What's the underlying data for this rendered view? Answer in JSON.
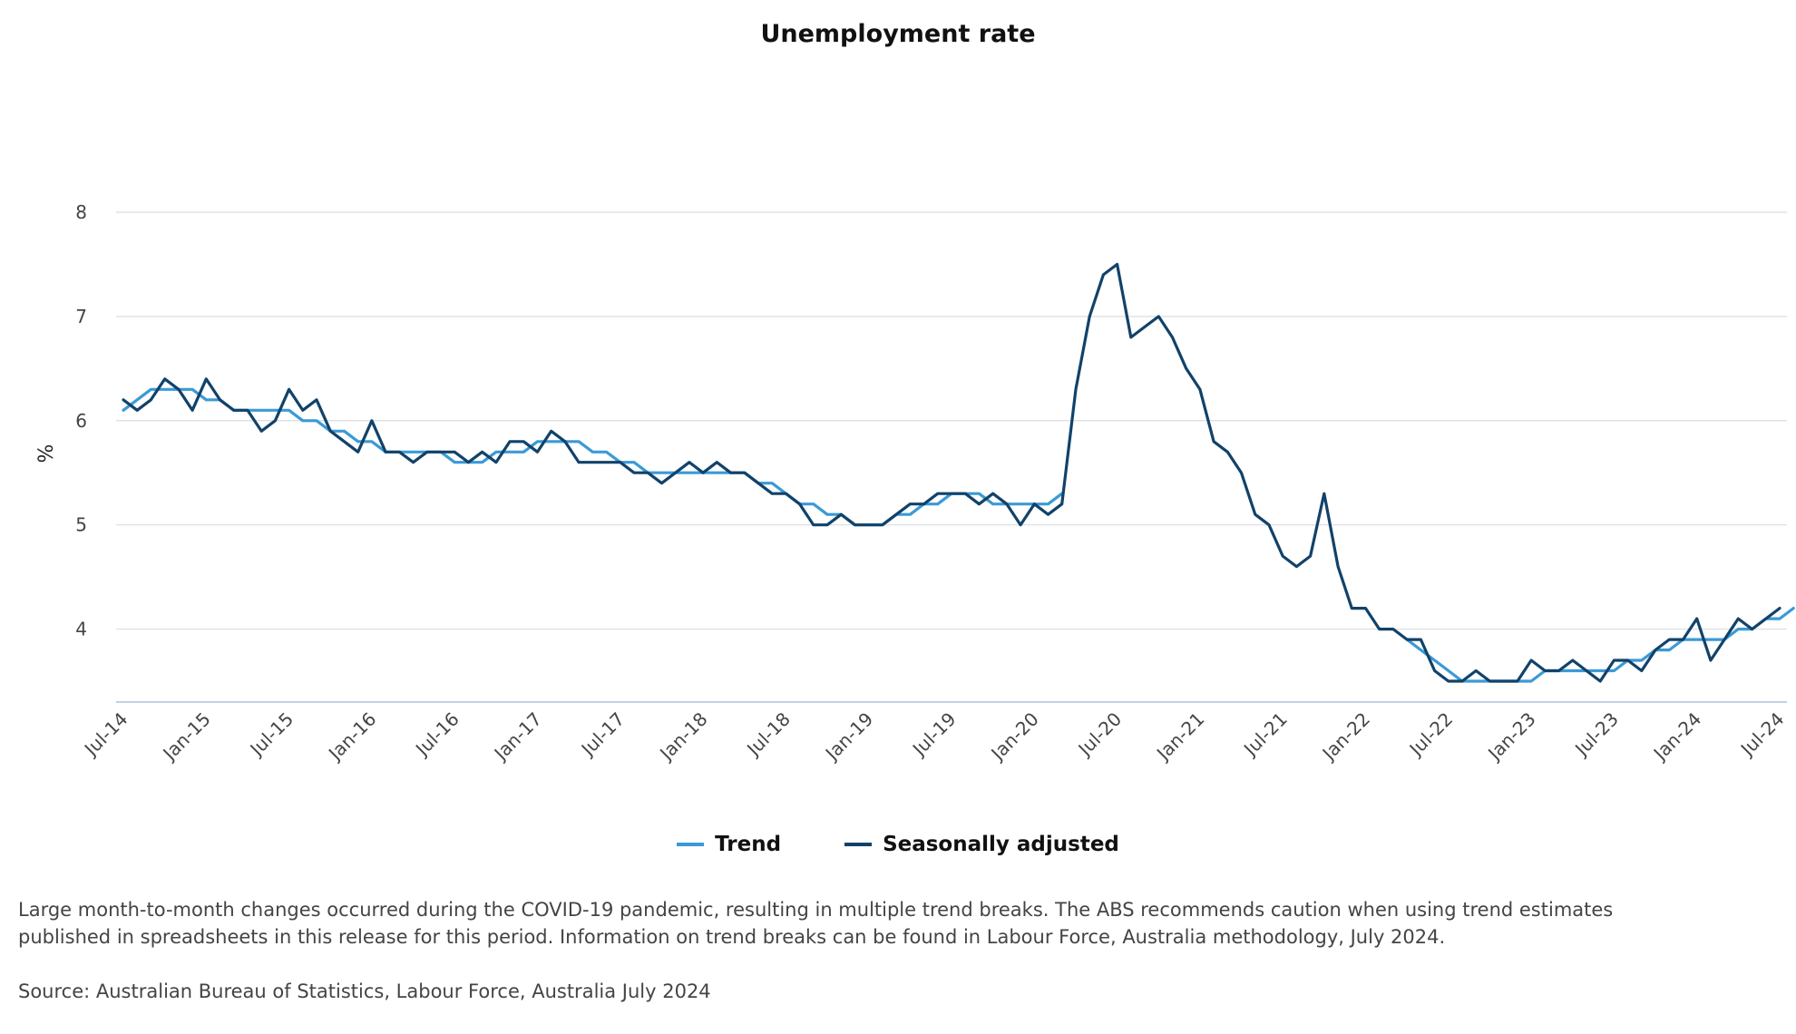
{
  "chart_data": {
    "type": "line",
    "title": "Unemployment rate",
    "ylabel": "%",
    "xlabel": "",
    "ylim": [
      3.3,
      8
    ],
    "yticks": [
      4,
      5,
      6,
      7,
      8
    ],
    "grid": true,
    "legend_position": "bottom-center",
    "x_tick_labels": [
      "Jul-14",
      "Jan-15",
      "Jul-15",
      "Jan-16",
      "Jul-16",
      "Jan-17",
      "Jul-17",
      "Jan-18",
      "Jul-18",
      "Jan-19",
      "Jul-19",
      "Jan-20",
      "Jul-20",
      "Jan-21",
      "Jul-21",
      "Jan-22",
      "Jul-22",
      "Jan-23",
      "Jul-23",
      "Jan-24",
      "Jul-24"
    ],
    "months_start": "Jul-14",
    "months_count": 121,
    "series": [
      {
        "name": "Trend",
        "color": "#3b9ad6",
        "values": [
          6.1,
          6.2,
          6.3,
          6.3,
          6.3,
          6.3,
          6.2,
          6.2,
          6.1,
          6.1,
          6.1,
          6.1,
          6.1,
          6.0,
          6.0,
          5.9,
          5.9,
          5.8,
          5.8,
          5.7,
          5.7,
          5.7,
          5.7,
          5.7,
          5.6,
          5.6,
          5.6,
          5.7,
          5.7,
          5.7,
          5.8,
          5.8,
          5.8,
          5.8,
          5.7,
          5.7,
          5.6,
          5.6,
          5.5,
          5.5,
          5.5,
          5.5,
          5.5,
          5.5,
          5.5,
          5.5,
          5.4,
          5.4,
          5.3,
          5.2,
          5.2,
          5.1,
          5.1,
          5.0,
          5.0,
          5.0,
          5.1,
          5.1,
          5.2,
          5.2,
          5.3,
          5.3,
          5.3,
          5.2,
          5.2,
          5.2,
          5.2,
          5.2,
          5.3,
          null,
          null,
          null,
          null,
          null,
          null,
          null,
          null,
          null,
          null,
          null,
          null,
          null,
          null,
          null,
          null,
          null,
          null,
          null,
          null,
          null,
          null,
          null,
          null,
          3.9,
          3.8,
          3.7,
          3.6,
          3.5,
          3.5,
          3.5,
          3.5,
          3.5,
          3.5,
          3.6,
          3.6,
          3.6,
          3.6,
          3.6,
          3.6,
          3.7,
          3.7,
          3.8,
          3.8,
          3.9,
          3.9,
          3.9,
          3.9,
          4.0,
          4.0,
          4.1,
          4.1,
          4.2
        ]
      },
      {
        "name": "Seasonally adjusted",
        "color": "#11426a",
        "values": [
          6.2,
          6.1,
          6.2,
          6.4,
          6.3,
          6.1,
          6.4,
          6.2,
          6.1,
          6.1,
          5.9,
          6.0,
          6.3,
          6.1,
          6.2,
          5.9,
          5.8,
          5.7,
          6.0,
          5.7,
          5.7,
          5.6,
          5.7,
          5.7,
          5.7,
          5.6,
          5.7,
          5.6,
          5.8,
          5.8,
          5.7,
          5.9,
          5.8,
          5.6,
          5.6,
          5.6,
          5.6,
          5.5,
          5.5,
          5.4,
          5.5,
          5.6,
          5.5,
          5.6,
          5.5,
          5.5,
          5.4,
          5.3,
          5.3,
          5.2,
          5.0,
          5.0,
          5.1,
          5.0,
          5.0,
          5.0,
          5.1,
          5.2,
          5.2,
          5.3,
          5.3,
          5.3,
          5.2,
          5.3,
          5.2,
          5.0,
          5.2,
          5.1,
          5.2,
          6.3,
          7.0,
          7.4,
          7.5,
          6.8,
          6.9,
          7.0,
          6.8,
          6.5,
          6.3,
          5.8,
          5.7,
          5.5,
          5.1,
          5.0,
          4.7,
          4.6,
          4.7,
          5.3,
          4.6,
          4.2,
          4.2,
          4.0,
          4.0,
          3.9,
          3.9,
          3.6,
          3.5,
          3.5,
          3.6,
          3.5,
          3.5,
          3.5,
          3.7,
          3.6,
          3.6,
          3.7,
          3.6,
          3.5,
          3.7,
          3.7,
          3.6,
          3.8,
          3.9,
          3.9,
          4.1,
          3.7,
          3.9,
          4.1,
          4.0,
          4.1,
          4.2
        ]
      }
    ]
  },
  "legend": [
    {
      "label": "Trend",
      "color": "#3b9ad6"
    },
    {
      "label": "Seasonally adjusted",
      "color": "#11426a"
    }
  ],
  "footnote": "Large month-to-month changes occurred during the COVID-19 pandemic, resulting in multiple trend breaks. The ABS recommends caution when using trend estimates published in spreadsheets in this release for this period. Information on trend breaks can be found in Labour Force, Australia methodology, July 2024.",
  "source": "Source: Australian Bureau of Statistics, Labour Force, Australia July 2024"
}
